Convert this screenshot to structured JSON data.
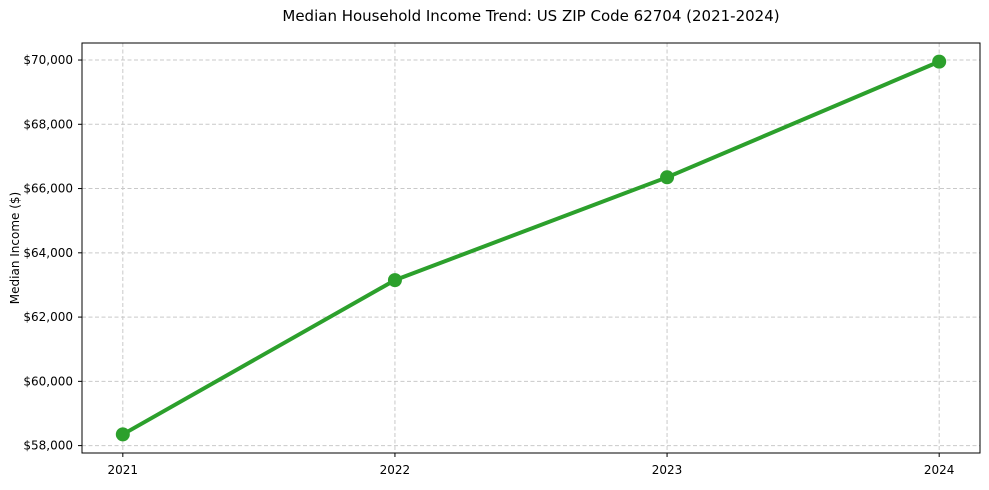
{
  "chart_data": {
    "type": "line",
    "title": "Median Household Income Trend: US ZIP Code 62704 (2021-2024)",
    "xlabel": "",
    "ylabel": "Median Income ($)",
    "x": [
      2021,
      2022,
      2023,
      2024
    ],
    "xtick_labels": [
      "2021",
      "2022",
      "2023",
      "2024"
    ],
    "series": [
      {
        "name": "Median Household Income",
        "values": [
          58350,
          63150,
          66350,
          69950
        ]
      }
    ],
    "yticks": [
      58000,
      60000,
      62000,
      64000,
      66000,
      68000,
      70000
    ],
    "ytick_labels": [
      "$58,000",
      "$60,000",
      "$62,000",
      "$64,000",
      "$66,000",
      "$68,000",
      "$70,000"
    ],
    "ylim": [
      57770,
      70530
    ],
    "xlim": [
      2020.85,
      2024.15
    ],
    "grid": true,
    "grid_style": "dashed",
    "legend_position": "none",
    "line_color": "#2ca02c",
    "marker_color": "#2ca02c",
    "grid_color": "#c9c9c9",
    "axis_color": "#000000",
    "background_color": "#ffffff",
    "marker": "circle",
    "marker_radius": 7,
    "line_width": 4
  }
}
